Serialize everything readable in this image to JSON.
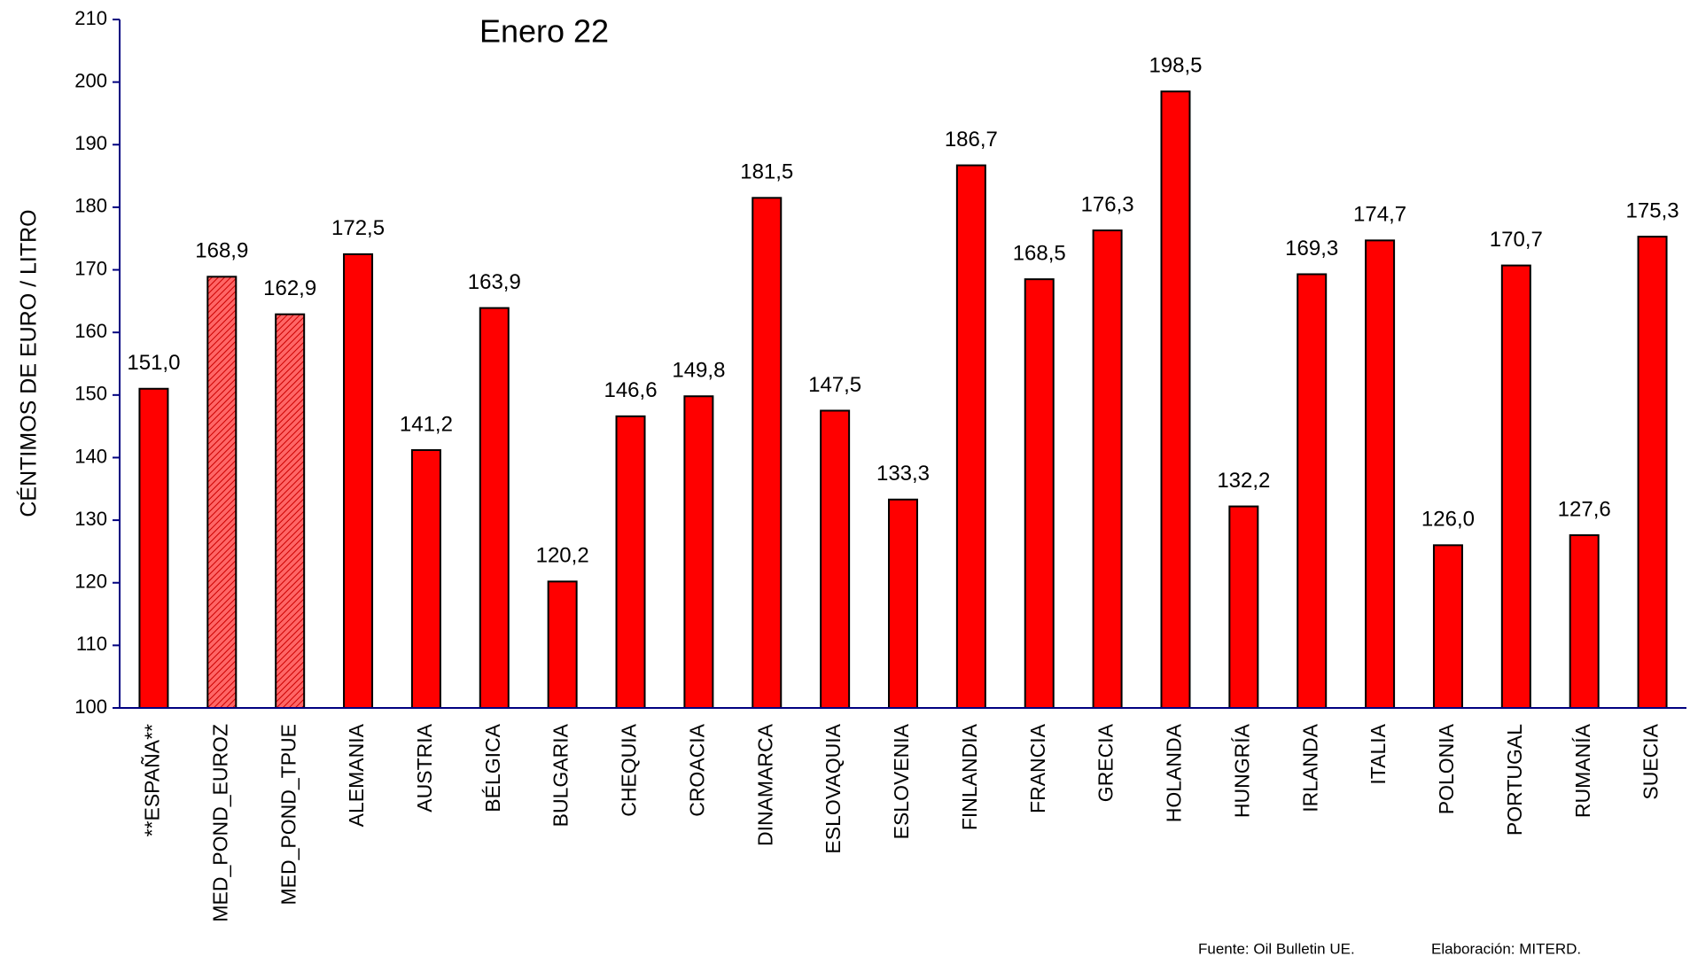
{
  "chart_data": {
    "type": "bar",
    "title": "Enero 22",
    "y_label": "CÉNTIMOS DE EURO / LITRO",
    "categories": [
      "**ESPAÑA**",
      "MED_POND_EUROZ",
      "MED_POND_TPUE",
      "ALEMANIA",
      "AUSTRIA",
      "BÉLGICA",
      "BULGARIA",
      "CHEQUIA",
      "CROACIA",
      "DINAMARCA",
      "ESLOVAQUIA",
      "ESLOVENIA",
      "FINLANDIA",
      "FRANCIA",
      "GRECIA",
      "HOLANDA",
      "HUNGRÍA",
      "IRLANDA",
      "ITALIA",
      "POLONIA",
      "PORTUGAL",
      "RUMANÍA",
      "SUECIA"
    ],
    "values": [
      151.0,
      168.9,
      162.9,
      172.5,
      141.2,
      163.9,
      120.2,
      146.6,
      149.8,
      181.5,
      147.5,
      133.3,
      186.7,
      168.5,
      176.3,
      198.5,
      132.2,
      169.3,
      174.7,
      126.0,
      170.7,
      127.6,
      175.3
    ],
    "value_labels": [
      "151,0",
      "168,9",
      "162,9",
      "172,5",
      "141,2",
      "163,9",
      "120,2",
      "146,6",
      "149,8",
      "181,5",
      "147,5",
      "133,3",
      "186,7",
      "168,5",
      "176,3",
      "198,5",
      "132,2",
      "169,3",
      "174,7",
      "126,0",
      "170,7",
      "127,6",
      "175,3"
    ],
    "color": "#ff0000",
    "hatched_indices": [
      1,
      2
    ],
    "ylim": [
      100,
      210
    ],
    "yticks": [
      100,
      110,
      120,
      130,
      140,
      150,
      160,
      170,
      180,
      190,
      200,
      210
    ],
    "grid": false
  },
  "footer": {
    "source": "Fuente: Oil Bulletin UE.",
    "credit": "Elaboración: MITERD."
  }
}
